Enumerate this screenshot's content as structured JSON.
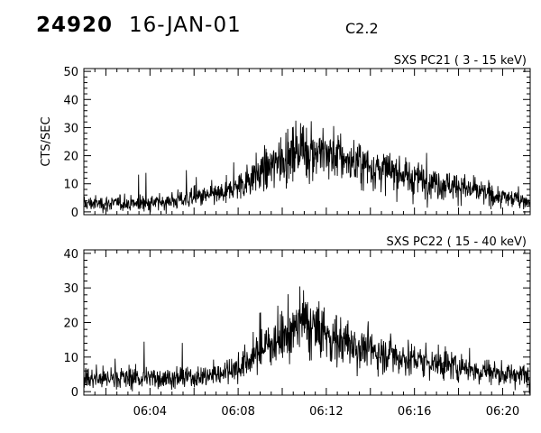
{
  "header": {
    "event_id": "24920",
    "date": "16-JAN-01",
    "flare_class": "C2.2"
  },
  "chart_data": [
    {
      "type": "line",
      "title": "SXS PC21  (  3 - 15 keV)",
      "ylabel": "CTS/SEC",
      "xlabel": "",
      "xlim": [
        "06:01:00",
        "06:21:15"
      ],
      "ylim": [
        -1,
        51
      ],
      "yticks": [
        0,
        10,
        20,
        30,
        40,
        50
      ],
      "xtick_labels": [],
      "grid": false,
      "series": [
        {
          "x": [
            "06:01:00",
            "06:02:00",
            "06:03:00",
            "06:04:00",
            "06:05:00",
            "06:06:00",
            "06:07:00",
            "06:07:30",
            "06:08:00",
            "06:08:30",
            "06:09:00",
            "06:09:30",
            "06:10:00",
            "06:10:30",
            "06:11:00",
            "06:11:30",
            "06:12:00",
            "06:12:30",
            "06:13:00",
            "06:13:30",
            "06:14:00",
            "06:14:30",
            "06:15:00",
            "06:15:30",
            "06:16:00",
            "06:16:30",
            "06:17:00",
            "06:17:30",
            "06:18:00",
            "06:18:30",
            "06:19:00",
            "06:19:30",
            "06:20:00",
            "06:20:30",
            "06:21:00"
          ],
          "values": [
            3,
            3,
            3,
            3,
            4,
            5,
            6,
            7,
            9,
            12,
            14,
            16,
            19,
            21,
            22,
            22,
            21,
            20,
            18,
            17,
            16,
            15,
            14,
            13,
            12,
            11,
            10,
            10,
            9,
            8,
            7,
            6,
            5,
            5,
            4
          ]
        }
      ]
    },
    {
      "type": "line",
      "title": "SXS PC22  ( 15 - 40 keV)",
      "ylabel": "",
      "xlabel": "",
      "xlim": [
        "06:01:00",
        "06:21:15"
      ],
      "ylim": [
        -1,
        41
      ],
      "yticks": [
        0,
        10,
        20,
        30,
        40
      ],
      "xtick_labels": [
        "06:04",
        "06:08",
        "06:12",
        "06:16",
        "06:20"
      ],
      "grid": false,
      "series": [
        {
          "x": [
            "06:01:00",
            "06:02:00",
            "06:03:00",
            "06:04:00",
            "06:05:00",
            "06:06:00",
            "06:07:00",
            "06:07:30",
            "06:08:00",
            "06:08:30",
            "06:09:00",
            "06:09:30",
            "06:10:00",
            "06:10:30",
            "06:11:00",
            "06:11:30",
            "06:12:00",
            "06:12:30",
            "06:13:00",
            "06:13:30",
            "06:14:00",
            "06:14:30",
            "06:15:00",
            "06:15:30",
            "06:16:00",
            "06:16:30",
            "06:17:00",
            "06:17:30",
            "06:18:00",
            "06:18:30",
            "06:19:00",
            "06:19:30",
            "06:20:00",
            "06:20:30",
            "06:21:00"
          ],
          "values": [
            4,
            4,
            4,
            4,
            4,
            4,
            5,
            6,
            7,
            9,
            12,
            14,
            16,
            18,
            20,
            18,
            16,
            15,
            14,
            13,
            12,
            11,
            11,
            10,
            9,
            9,
            8,
            8,
            7,
            7,
            6,
            6,
            5,
            5,
            5
          ]
        }
      ]
    }
  ]
}
